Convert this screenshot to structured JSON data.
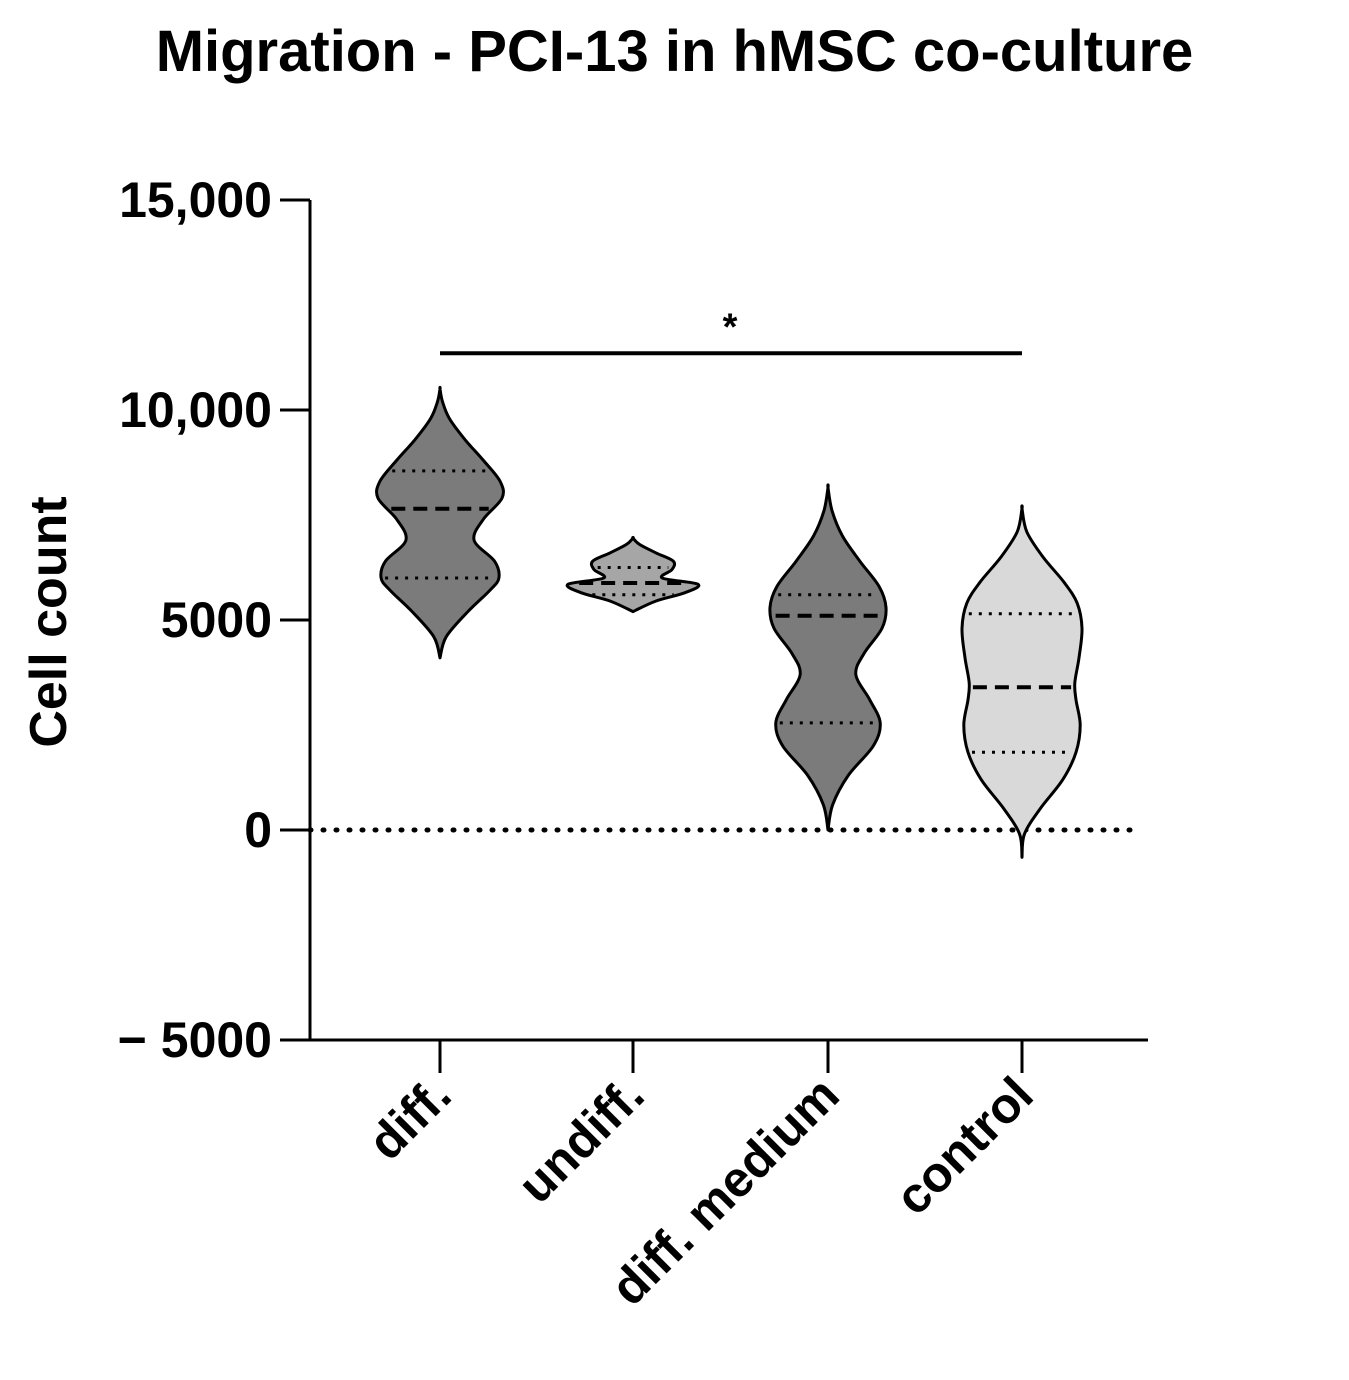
{
  "chart_data": {
    "type": "violin",
    "title": "Migration - PCI-13 in hMSC co-culture",
    "xlabel": "",
    "ylabel": "Cell count",
    "ylim": [
      -5000,
      15000
    ],
    "yticks": [
      -5000,
      0,
      5000,
      10000,
      15000
    ],
    "ytick_labels": [
      "− 5000",
      "0",
      "5000",
      "10,000",
      "15,000"
    ],
    "categories": [
      "diff.",
      "undiff.",
      "diff. medium",
      "control"
    ],
    "series": [
      {
        "category": "diff.",
        "color": "#7b7b7b",
        "min": 4100,
        "max": 10500,
        "q1": 6000,
        "median": 7650,
        "q3": 8550,
        "density": [
          [
            4100,
            0.0
          ],
          [
            4600,
            0.1
          ],
          [
            5200,
            0.45
          ],
          [
            5700,
            0.8
          ],
          [
            6000,
            0.95
          ],
          [
            6400,
            0.88
          ],
          [
            6900,
            0.55
          ],
          [
            7400,
            0.7
          ],
          [
            7900,
            1.0
          ],
          [
            8300,
            0.97
          ],
          [
            8800,
            0.7
          ],
          [
            9300,
            0.4
          ],
          [
            9800,
            0.15
          ],
          [
            10200,
            0.04
          ],
          [
            10500,
            0.0
          ]
        ]
      },
      {
        "category": "undiff.",
        "color": "#a6a6a6",
        "min": 5200,
        "max": 6950,
        "q1": 5600,
        "median": 5880,
        "q3": 6250,
        "density": [
          [
            5200,
            0.0
          ],
          [
            5450,
            0.35
          ],
          [
            5650,
            0.8
          ],
          [
            5850,
            1.0
          ],
          [
            6000,
            0.45
          ],
          [
            6200,
            0.6
          ],
          [
            6400,
            0.62
          ],
          [
            6600,
            0.35
          ],
          [
            6800,
            0.1
          ],
          [
            6950,
            0.0
          ]
        ]
      },
      {
        "category": "diff. medium",
        "color": "#7b7b7b",
        "min": 0,
        "max": 8150,
        "q1": 2550,
        "median": 5100,
        "q3": 5600,
        "density": [
          [
            0,
            0.0
          ],
          [
            600,
            0.08
          ],
          [
            1300,
            0.35
          ],
          [
            2000,
            0.78
          ],
          [
            2550,
            0.9
          ],
          [
            3100,
            0.72
          ],
          [
            3700,
            0.48
          ],
          [
            4200,
            0.62
          ],
          [
            4800,
            0.93
          ],
          [
            5300,
            1.0
          ],
          [
            5800,
            0.88
          ],
          [
            6400,
            0.55
          ],
          [
            7000,
            0.25
          ],
          [
            7600,
            0.07
          ],
          [
            8150,
            0.0
          ]
        ]
      },
      {
        "category": "control",
        "color": "#d9d9d9",
        "min": -650,
        "max": 7650,
        "q1": 1850,
        "median": 3400,
        "q3": 5150,
        "density": [
          [
            -650,
            0.0
          ],
          [
            -100,
            0.04
          ],
          [
            500,
            0.3
          ],
          [
            1200,
            0.68
          ],
          [
            1850,
            0.9
          ],
          [
            2500,
            0.97
          ],
          [
            3100,
            0.9
          ],
          [
            3500,
            0.88
          ],
          [
            4100,
            0.95
          ],
          [
            4800,
            1.0
          ],
          [
            5400,
            0.92
          ],
          [
            5900,
            0.7
          ],
          [
            6500,
            0.35
          ],
          [
            7100,
            0.08
          ],
          [
            7650,
            0.0
          ]
        ]
      }
    ],
    "significance": [
      {
        "from": "diff.",
        "to": "control",
        "label": "*",
        "y": 11350
      }
    ],
    "reference_line": {
      "y": 0,
      "style": "dotted"
    }
  }
}
